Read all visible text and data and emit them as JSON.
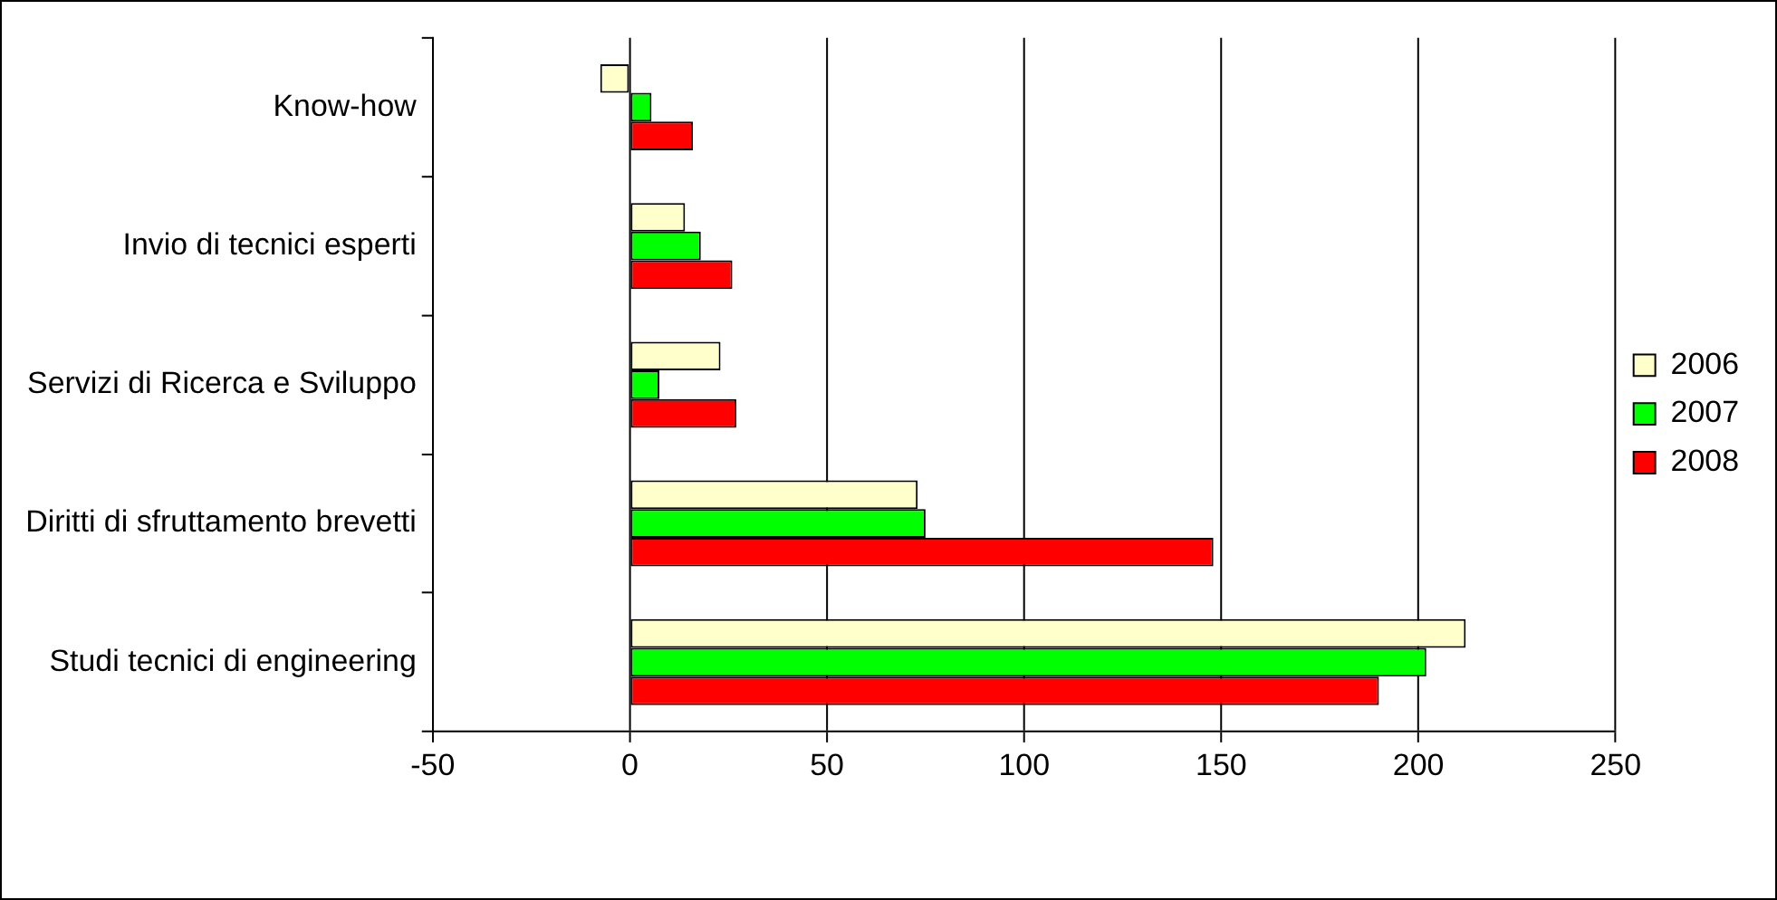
{
  "chart_data": {
    "type": "bar",
    "orientation": "horizontal",
    "categories": [
      "Know-how",
      "Invio di tecnici esperti",
      "Servizi di Ricerca e Sviluppo",
      "Diritti di sfruttamento brevetti",
      "Studi tecnici di engineering"
    ],
    "series": [
      {
        "name": "2006",
        "color": "#ffffcc",
        "values": [
          -7.5,
          14,
          23,
          73,
          212
        ]
      },
      {
        "name": "2007",
        "color": "#00ff00",
        "values": [
          5.5,
          18,
          7.5,
          75,
          202
        ]
      },
      {
        "name": "2008",
        "color": "#ff0000",
        "values": [
          16,
          26,
          27,
          148,
          190
        ]
      }
    ],
    "xlim": [
      -50,
      250
    ],
    "xticks": [
      -50,
      0,
      50,
      100,
      150,
      200,
      250
    ],
    "grid": "x",
    "legend": "right"
  }
}
